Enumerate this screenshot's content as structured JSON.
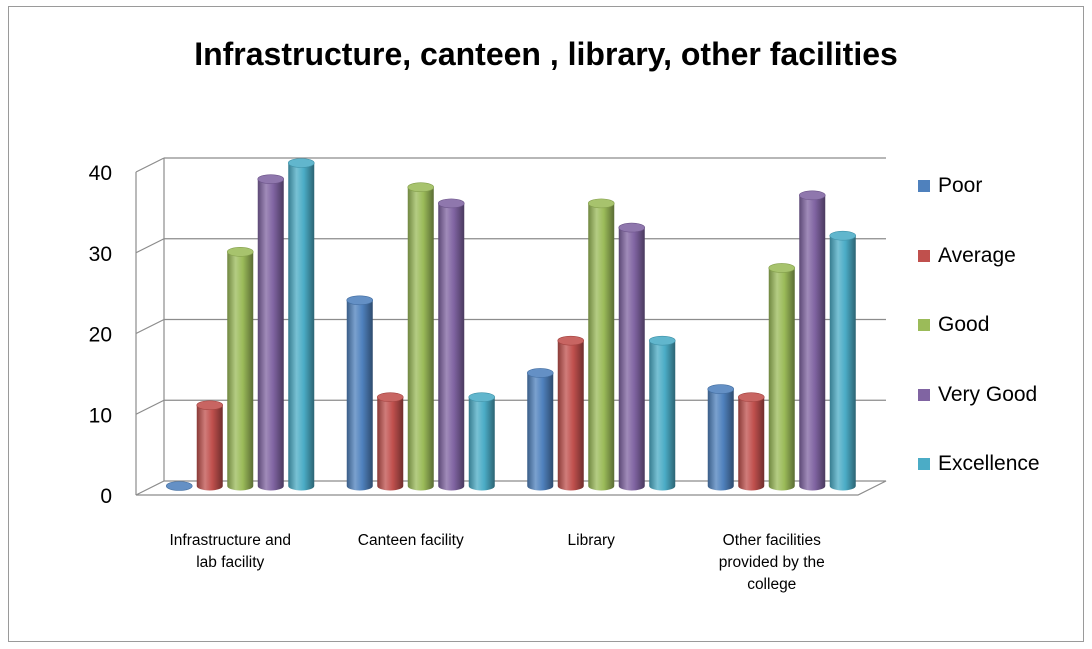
{
  "chart_data": {
    "type": "bar",
    "title": "Infrastructure, canteen , library, other facilities",
    "categories": [
      [
        "Infrastructure and",
        "lab facility"
      ],
      [
        "Canteen facility"
      ],
      [
        "Library"
      ],
      [
        "Other facilities",
        "provided by the",
        "college"
      ]
    ],
    "series": [
      {
        "name": "Poor",
        "color": "#4f81bd",
        "values": [
          0,
          23,
          14,
          12
        ]
      },
      {
        "name": "Average",
        "color": "#c0504d",
        "values": [
          10,
          11,
          18,
          11
        ]
      },
      {
        "name": "Good",
        "color": "#9bbb59",
        "values": [
          29,
          37,
          35,
          27
        ]
      },
      {
        "name": "Very Good",
        "color": "#8064a2",
        "values": [
          38,
          35,
          32,
          36
        ]
      },
      {
        "name": "Excellence",
        "color": "#4bacc6",
        "values": [
          40,
          11,
          18,
          31
        ]
      }
    ],
    "y_ticks": [
      0,
      10,
      20,
      30,
      40
    ],
    "ylim": [
      0,
      40
    ],
    "grid": true,
    "legend_position": "right",
    "style": "3d-cylinder"
  }
}
